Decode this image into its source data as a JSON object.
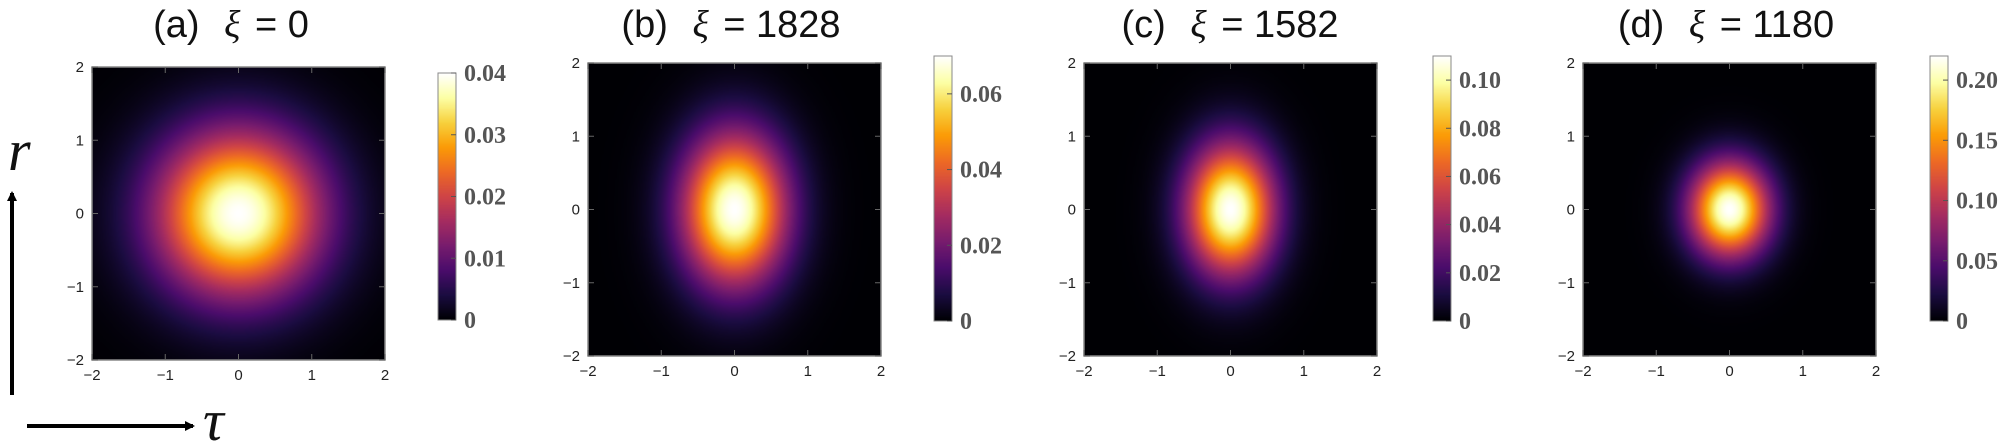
{
  "chart_data": [
    {
      "type": "heatmap",
      "title": {
        "prefix": "(a)",
        "symbol": "ξ",
        "value": "= 0"
      },
      "x_range": [
        -2,
        2
      ],
      "y_range": [
        -2,
        2
      ],
      "x_ticks": [
        "−2",
        "−1",
        "0",
        "1",
        "2"
      ],
      "y_ticks": [
        "2",
        "1",
        "0",
        "−1",
        "−2"
      ],
      "peak": 0.04,
      "sigma_tau": 0.78,
      "sigma_r": 0.78,
      "colorbar": {
        "min": 0,
        "max": 0.04,
        "ticks": [
          0,
          0.01,
          0.02,
          0.03,
          0.04
        ],
        "labels": [
          "0",
          "0.01",
          "0.02",
          "0.03",
          "0.04"
        ]
      }
    },
    {
      "type": "heatmap",
      "title": {
        "prefix": "(b)",
        "symbol": "ξ",
        "value": "= 1828"
      },
      "x_range": [
        -2,
        2
      ],
      "y_range": [
        -2,
        2
      ],
      "x_ticks": [
        "−2",
        "−1",
        "0",
        "1",
        "2"
      ],
      "y_ticks": [
        "2",
        "1",
        "0",
        "−1",
        "−2"
      ],
      "peak": 0.07,
      "sigma_tau": 0.5,
      "sigma_r": 0.72,
      "colorbar": {
        "min": 0,
        "max": 0.07,
        "ticks": [
          0,
          0.02,
          0.04,
          0.06
        ],
        "labels": [
          "0",
          "0.02",
          "0.04",
          "0.06"
        ]
      }
    },
    {
      "type": "heatmap",
      "title": {
        "prefix": "(c)",
        "symbol": "ξ",
        "value": "= 1582"
      },
      "x_range": [
        -2,
        2
      ],
      "y_range": [
        -2,
        2
      ],
      "x_ticks": [
        "−2",
        "−1",
        "0",
        "1",
        "2"
      ],
      "y_ticks": [
        "2",
        "1",
        "0",
        "−1",
        "−2"
      ],
      "peak": 0.11,
      "sigma_tau": 0.42,
      "sigma_r": 0.62,
      "colorbar": {
        "min": 0,
        "max": 0.11,
        "ticks": [
          0,
          0.02,
          0.04,
          0.06,
          0.08,
          0.1
        ],
        "labels": [
          "0",
          "0.02",
          "0.04",
          "0.06",
          "0.08",
          "0.10"
        ]
      }
    },
    {
      "type": "heatmap",
      "title": {
        "prefix": "(d)",
        "symbol": "ξ",
        "value": "= 1180"
      },
      "x_range": [
        -2,
        2
      ],
      "y_range": [
        -2,
        2
      ],
      "x_ticks": [
        "−2",
        "−1",
        "0",
        "1",
        "2"
      ],
      "y_ticks": [
        "2",
        "1",
        "0",
        "−1",
        "−2"
      ],
      "peak": 0.22,
      "sigma_tau": 0.38,
      "sigma_r": 0.45,
      "colorbar": {
        "min": 0,
        "max": 0.22,
        "ticks": [
          0,
          0.05,
          0.1,
          0.15,
          0.2
        ],
        "labels": [
          "0",
          "0.05",
          "0.10",
          "0.15",
          "0.20"
        ]
      }
    }
  ],
  "axes_labels": {
    "vertical": "r",
    "horizontal": "τ"
  },
  "colormap": [
    "#000004",
    "#1b0c41",
    "#4a0c6b",
    "#781c6d",
    "#a52c60",
    "#cf4446",
    "#ed6925",
    "#fb9b06",
    "#f7d13d",
    "#fcffa4",
    "#ffffff"
  ]
}
